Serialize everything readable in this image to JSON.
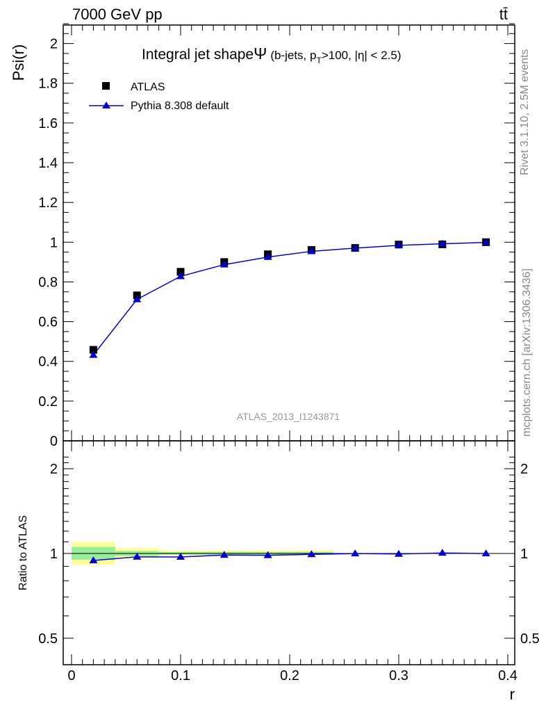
{
  "header": {
    "energy_label": "7000 GeV pp",
    "process_label": "tt̄"
  },
  "side_labels": {
    "rivet": "Rivet 3.1.10,  2.5M events",
    "mcplots": "mcplots.cern.ch [arXiv:1306.3436]"
  },
  "chart_data": [
    {
      "type": "scatter",
      "panel": "main",
      "title_main": "Integral jet shape",
      "title_symbol": "Ψ",
      "title_cuts": {
        "prefix": "(b-jets, p",
        "sub": "T",
        "suffix": ">100, |η| < 2.5)"
      },
      "watermark": "ATLAS_2013_I1243871",
      "ylabel": "Psi(r)",
      "xlim": [
        0,
        0.4
      ],
      "ylim": [
        0,
        2.1
      ],
      "yticks": [
        "0",
        "0.2",
        "0.4",
        "0.6",
        "0.8",
        "1",
        "1.2",
        "1.4",
        "1.6",
        "1.8",
        "2"
      ],
      "grid": false,
      "legend_position": "top-left",
      "series": [
        {
          "name": "ATLAS",
          "marker": "square",
          "color": "#000000",
          "x": [
            0.02,
            0.06,
            0.1,
            0.14,
            0.18,
            0.22,
            0.26,
            0.3,
            0.34,
            0.38
          ],
          "y": [
            0.458,
            0.732,
            0.851,
            0.9,
            0.939,
            0.961,
            0.971,
            0.988,
            0.989,
            1.0
          ]
        },
        {
          "name": "Pythia 8.308 default",
          "marker": "triangle",
          "color": "#0000cc",
          "x": [
            0.02,
            0.06,
            0.1,
            0.14,
            0.18,
            0.22,
            0.26,
            0.3,
            0.34,
            0.38
          ],
          "y": [
            0.432,
            0.712,
            0.828,
            0.887,
            0.925,
            0.954,
            0.97,
            0.984,
            0.992,
            0.999
          ]
        }
      ]
    },
    {
      "type": "scatter",
      "panel": "ratio",
      "ylabel": "Ratio to ATLAS",
      "xlabel": "r",
      "xlim": [
        0,
        0.4
      ],
      "ylim": [
        0.35,
        2.3
      ],
      "log_y": true,
      "xticks": [
        "0",
        "0.1",
        "0.2",
        "0.3",
        "0.4"
      ],
      "yticks": [
        "0.5",
        "1",
        "2"
      ],
      "uncertainty_bands": [
        {
          "x_low": 0.0,
          "x_high": 0.04,
          "yellow": [
            0.91,
            1.1
          ],
          "green": [
            0.95,
            1.055
          ]
        },
        {
          "x_low": 0.04,
          "x_high": 0.08,
          "yellow": [
            0.96,
            1.045
          ],
          "green": [
            0.98,
            1.02
          ]
        },
        {
          "x_low": 0.08,
          "x_high": 0.24,
          "yellow": [
            0.985,
            1.025
          ],
          "green": [
            0.99,
            1.012
          ]
        }
      ],
      "series": [
        {
          "name": "Pythia 8.308 default",
          "marker": "triangle",
          "color": "#0000cc",
          "x": [
            0.02,
            0.06,
            0.1,
            0.14,
            0.18,
            0.22,
            0.26,
            0.3,
            0.34,
            0.38
          ],
          "y": [
            0.944,
            0.973,
            0.972,
            0.987,
            0.985,
            0.993,
            0.999,
            0.996,
            1.004,
            0.999
          ]
        }
      ]
    }
  ]
}
